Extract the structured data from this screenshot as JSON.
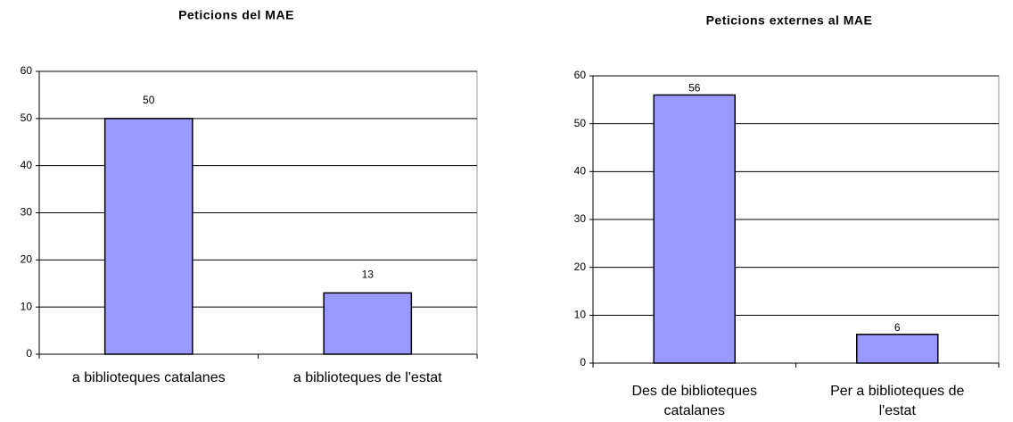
{
  "chart_data": [
    {
      "type": "bar",
      "title": "Peticions del MAE",
      "categories": [
        "a biblioteques catalanes",
        "a biblioteques de l'estat"
      ],
      "values": [
        50,
        13
      ],
      "color": "#9999ff",
      "ylim": [
        0,
        60
      ],
      "yticks": [
        0,
        10,
        20,
        30,
        40,
        50,
        60
      ],
      "grid": true
    },
    {
      "type": "bar",
      "title": "Peticions externes al MAE",
      "categories": [
        "Des de biblioteques catalanes",
        "Per a biblioteques de l'estat"
      ],
      "values": [
        56,
        6
      ],
      "color": "#9999ff",
      "ylim": [
        0,
        60
      ],
      "yticks": [
        0,
        10,
        20,
        30,
        40,
        50,
        60
      ],
      "grid": true
    }
  ]
}
